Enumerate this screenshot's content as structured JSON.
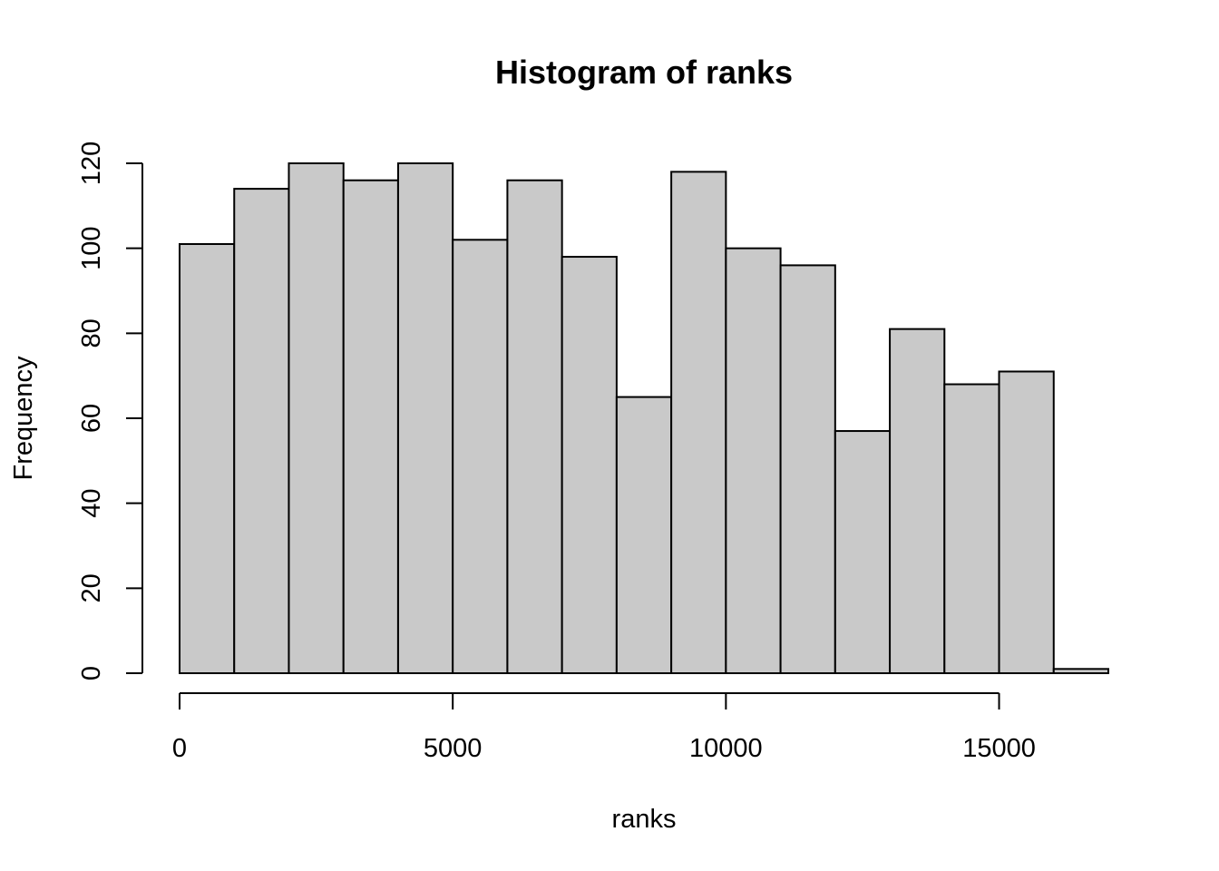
{
  "chart_data": {
    "type": "bar",
    "title": "Histogram of ranks",
    "xlabel": "ranks",
    "ylabel": "Frequency",
    "bin_width": 1000,
    "bins": [
      {
        "start": 0,
        "end": 1000,
        "count": 101
      },
      {
        "start": 1000,
        "end": 2000,
        "count": 114
      },
      {
        "start": 2000,
        "end": 3000,
        "count": 120
      },
      {
        "start": 3000,
        "end": 4000,
        "count": 116
      },
      {
        "start": 4000,
        "end": 5000,
        "count": 120
      },
      {
        "start": 5000,
        "end": 6000,
        "count": 102
      },
      {
        "start": 6000,
        "end": 7000,
        "count": 116
      },
      {
        "start": 7000,
        "end": 8000,
        "count": 98
      },
      {
        "start": 8000,
        "end": 9000,
        "count": 65
      },
      {
        "start": 9000,
        "end": 10000,
        "count": 118
      },
      {
        "start": 10000,
        "end": 11000,
        "count": 100
      },
      {
        "start": 11000,
        "end": 12000,
        "count": 96
      },
      {
        "start": 12000,
        "end": 13000,
        "count": 57
      },
      {
        "start": 13000,
        "end": 14000,
        "count": 81
      },
      {
        "start": 14000,
        "end": 15000,
        "count": 68
      },
      {
        "start": 15000,
        "end": 16000,
        "count": 71
      },
      {
        "start": 16000,
        "end": 17000,
        "count": 1
      }
    ],
    "xlim": [
      0,
      17000
    ],
    "ylim": [
      0,
      120
    ],
    "x_ticks": [
      0,
      5000,
      10000,
      15000
    ],
    "y_ticks": [
      0,
      20,
      40,
      60,
      80,
      100,
      120
    ],
    "bar_color": "#c9c9c9",
    "grid": false,
    "legend": "none"
  }
}
